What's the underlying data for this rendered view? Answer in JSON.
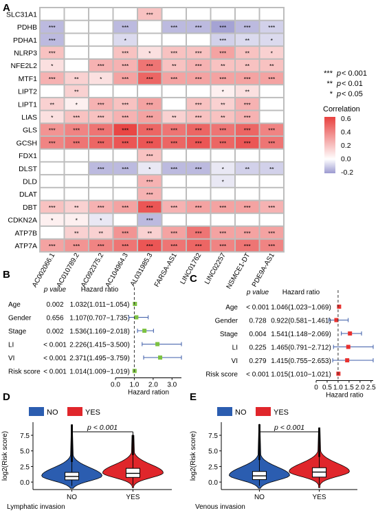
{
  "panel_labels": {
    "A": "A",
    "B": "B",
    "C": "C",
    "D": "D",
    "E": "E"
  },
  "chart_data": [
    {
      "panel": "A",
      "type": "heatmap",
      "rows": [
        "SLC31A1",
        "PDHB",
        "PDHA1",
        "NLRP3",
        "NFE2L2",
        "MTF1",
        "LIPT2",
        "LIPT1",
        "LIAS",
        "GLS",
        "GCSH",
        "FDX1",
        "DLST",
        "DLD",
        "DLAT",
        "DBT",
        "CDKN2A",
        "ATP7B",
        "ATP7A"
      ],
      "columns": [
        "AC002066.1",
        "AC010789.2",
        "AC092375.2",
        "AC104964.3",
        "AL031985.3",
        "FARSA-AS1",
        "LINC01762",
        "LINC02257",
        "NSMCE1-DT",
        "PDE9A-AS1"
      ],
      "values": [
        [
          0,
          0,
          0,
          0,
          0.2,
          0,
          0,
          0,
          0,
          0
        ],
        [
          -0.15,
          0,
          0,
          -0.15,
          0,
          -0.15,
          -0.15,
          -0.2,
          -0.15,
          -0.1
        ],
        [
          -0.15,
          0,
          0,
          -0.08,
          0,
          0,
          0,
          -0.1,
          -0.08,
          -0.08
        ],
        [
          0.2,
          0,
          0,
          0.2,
          0.1,
          0.2,
          0.2,
          0.3,
          0.2,
          0.15
        ],
        [
          0.1,
          0,
          0.25,
          0.25,
          0.45,
          0.2,
          0.25,
          0.2,
          0.2,
          0.2
        ],
        [
          0.25,
          0.15,
          0.1,
          0.3,
          0.5,
          0.3,
          0.3,
          0.3,
          0.3,
          0.3
        ],
        [
          0,
          0.15,
          0,
          0,
          0,
          0,
          0,
          0.05,
          0.1,
          0
        ],
        [
          0.15,
          0.05,
          0.25,
          0.2,
          0.3,
          0,
          0.2,
          0.15,
          0.25,
          0
        ],
        [
          0.1,
          0.2,
          0.2,
          0.25,
          0.3,
          0.15,
          0.2,
          0.2,
          0.25,
          0
        ],
        [
          0.35,
          0.4,
          0.45,
          0.6,
          0.5,
          0.45,
          0.5,
          0.45,
          0.5,
          0.4
        ],
        [
          0.4,
          0.45,
          0.5,
          0.55,
          0.55,
          0.5,
          0.55,
          0.5,
          0.55,
          0.45
        ],
        [
          0,
          0,
          0,
          0,
          0.2,
          0,
          0,
          0,
          0,
          0
        ],
        [
          0,
          0,
          -0.15,
          -0.15,
          -0.05,
          -0.15,
          -0.15,
          -0.05,
          -0.1,
          -0.1
        ],
        [
          0,
          0,
          0,
          0,
          0.25,
          0,
          0,
          -0.05,
          0,
          0
        ],
        [
          0,
          0,
          0,
          0,
          0.25,
          0,
          0,
          0,
          0,
          0
        ],
        [
          0.2,
          0.15,
          0.25,
          0.3,
          0.55,
          0.25,
          0.3,
          0.3,
          0.3,
          0.25
        ],
        [
          0.05,
          0.05,
          -0.05,
          0,
          -0.15,
          0,
          0,
          0,
          0,
          0
        ],
        [
          0,
          0.15,
          0.15,
          0.35,
          0.15,
          0.3,
          0.45,
          0.3,
          0.3,
          0.3
        ],
        [
          0.3,
          0.35,
          0.4,
          0.45,
          0.55,
          0.45,
          0.5,
          0.4,
          0.45,
          0.4
        ]
      ],
      "significance": [
        [
          "",
          "",
          "",
          "",
          "***",
          "",
          "",
          "",
          "",
          ""
        ],
        [
          "***",
          "",
          "",
          "***",
          "",
          "***",
          "***",
          "***",
          "***",
          "***"
        ],
        [
          "***",
          "",
          "",
          "*",
          "",
          "",
          "",
          "***",
          "**",
          "*"
        ],
        [
          "***",
          "",
          "",
          "***",
          "*",
          "***",
          "***",
          "***",
          "**",
          "*"
        ],
        [
          "*",
          "",
          "***",
          "***",
          "***",
          "**",
          "***",
          "**",
          "**",
          "**"
        ],
        [
          "***",
          "**",
          "*",
          "***",
          "***",
          "***",
          "***",
          "***",
          "***",
          "***"
        ],
        [
          "",
          "**",
          "",
          "",
          "",
          "",
          "",
          "*",
          "**",
          ""
        ],
        [
          "**",
          "*",
          "***",
          "***",
          "***",
          "",
          "***",
          "**",
          "***",
          ""
        ],
        [
          "*",
          "***",
          "***",
          "***",
          "***",
          "**",
          "***",
          "**",
          "***",
          ""
        ],
        [
          "***",
          "***",
          "***",
          "***",
          "***",
          "***",
          "***",
          "***",
          "***",
          "***"
        ],
        [
          "***",
          "***",
          "***",
          "***",
          "***",
          "***",
          "***",
          "***",
          "***",
          "***"
        ],
        [
          "",
          "",
          "",
          "",
          "***",
          "",
          "",
          "",
          "",
          ""
        ],
        [
          "",
          "",
          "***",
          "***",
          "*",
          "***",
          "***",
          "*",
          "**",
          "**"
        ],
        [
          "",
          "",
          "",
          "",
          "***",
          "",
          "",
          "*",
          "",
          ""
        ],
        [
          "",
          "",
          "",
          "",
          "***",
          "",
          "",
          "",
          "",
          ""
        ],
        [
          "***",
          "**",
          "***",
          "***",
          "***",
          "***",
          "***",
          "***",
          "***",
          "***"
        ],
        [
          "*",
          "*",
          "*",
          "",
          "***",
          "",
          "",
          "",
          "",
          ""
        ],
        [
          "",
          "**",
          "**",
          "***",
          "**",
          "***",
          "***",
          "***",
          "***",
          "***"
        ],
        [
          "***",
          "***",
          "***",
          "***",
          "***",
          "***",
          "***",
          "***",
          "***",
          "***"
        ]
      ],
      "legend_title": "Correlation",
      "legend_ticks": [
        "0.6",
        "0.4",
        "0.2",
        "0.0",
        "-0.2"
      ],
      "colors": {
        "high": "#e8413f",
        "mid": "#ffffff",
        "low": "#9c9ad0"
      },
      "sig_legend": [
        {
          "stars": "***",
          "p": "p",
          "text": " < 0.001"
        },
        {
          "stars": "**",
          "p": "p",
          "text": " < 0.01"
        },
        {
          "stars": "*",
          "p": "p",
          "text": " < 0.05"
        }
      ]
    },
    {
      "panel": "B",
      "type": "forest",
      "header_p": "p value",
      "header_hr": "Hazard ratio",
      "variables": [
        "Age",
        "Gender",
        "Stage",
        "LI",
        "VI",
        "Risk score"
      ],
      "p_values": [
        "0.002",
        "0.656",
        "0.002",
        "< 0.001",
        "< 0.001",
        "< 0.001"
      ],
      "hr_text": [
        "1.032(1.011−1.054)",
        "1.107(0.707−1.735)",
        "1.536(1.169−2.018)",
        "2.226(1.415−3.500)",
        "2.371(1.495−3.759)",
        "1.014(1.009−1.019)"
      ],
      "hr": [
        1.032,
        1.107,
        1.536,
        2.226,
        2.371,
        1.014
      ],
      "lower": [
        1.011,
        0.707,
        1.169,
        1.415,
        1.495,
        1.009
      ],
      "upper": [
        1.054,
        1.735,
        2.018,
        3.5,
        3.759,
        1.019
      ],
      "xlim": [
        0,
        3.5
      ],
      "xticks": [
        "0.0",
        "1.0",
        "2.0",
        "3.0"
      ],
      "xlabel": "Hazard ration",
      "marker_color": "#7dc242",
      "ci_color": "#3c5ca8"
    },
    {
      "panel": "C",
      "type": "forest",
      "header_p": "p value",
      "header_hr": "Hazard ratio",
      "variables": [
        "Age",
        "Gender",
        "Stage",
        "LI",
        "VI",
        "Risk score"
      ],
      "p_values": [
        "< 0.001",
        "0.728",
        "0.004",
        "0.225",
        "0.279",
        "< 0.001"
      ],
      "hr_text": [
        "1.046(1.023−1.069)",
        "0.922(0.581−1.461)",
        "1.541(1.148−2.069)",
        "1.465(0.791−2.712)",
        "1.415(0.755−2.653)",
        "1.015(1.010−1.021)"
      ],
      "hr": [
        1.046,
        0.922,
        1.541,
        1.465,
        1.415,
        1.015
      ],
      "lower": [
        1.023,
        0.581,
        1.148,
        0.791,
        0.755,
        1.01
      ],
      "upper": [
        1.069,
        1.461,
        2.069,
        2.712,
        2.653,
        1.021
      ],
      "xlim": [
        0,
        2.6
      ],
      "xticks": [
        "0",
        "0.5",
        "1.0",
        "1.5",
        "2.0",
        "2.5"
      ],
      "xlabel": "Hazard ratio",
      "marker_color": "#e8312f",
      "ci_color": "#3c5ca8"
    },
    {
      "panel": "D",
      "type": "violin-box",
      "legend": [
        "NO",
        "YES"
      ],
      "colors": [
        "#2b5db0",
        "#e0262b"
      ],
      "ylabel": "log2(Risk score)",
      "yticks": [
        "0.0",
        "2.5",
        "5.0",
        "7.5"
      ],
      "ylim": [
        -1.2,
        9.6
      ],
      "categories": [
        "NO",
        "YES"
      ],
      "medians": [
        0.9,
        1.4
      ],
      "q1": [
        0.35,
        0.75
      ],
      "q3": [
        1.55,
        2.2
      ],
      "whisker_low": [
        -0.6,
        -0.5
      ],
      "whisker_high": [
        3.2,
        4.3
      ],
      "max": [
        9.2,
        7.5
      ],
      "pvalue": "p < 0.001",
      "xlabel": "Lymphatic invasion"
    },
    {
      "panel": "E",
      "type": "violin-box",
      "legend": [
        "NO",
        "YES"
      ],
      "colors": [
        "#2b5db0",
        "#e0262b"
      ],
      "ylabel": "log2(Risk score)",
      "yticks": [
        "0.0",
        "2.5",
        "5.0",
        "7.5"
      ],
      "ylim": [
        -1.2,
        9.6
      ],
      "categories": [
        "NO",
        "YES"
      ],
      "medians": [
        1.0,
        1.6
      ],
      "q1": [
        0.4,
        0.8
      ],
      "q3": [
        1.7,
        2.3
      ],
      "whisker_low": [
        -0.6,
        -0.5
      ],
      "whisker_high": [
        3.5,
        4.0
      ],
      "max": [
        9.2,
        8.7
      ],
      "pvalue": "p < 0.001",
      "xlabel": "Venous invasion"
    }
  ]
}
